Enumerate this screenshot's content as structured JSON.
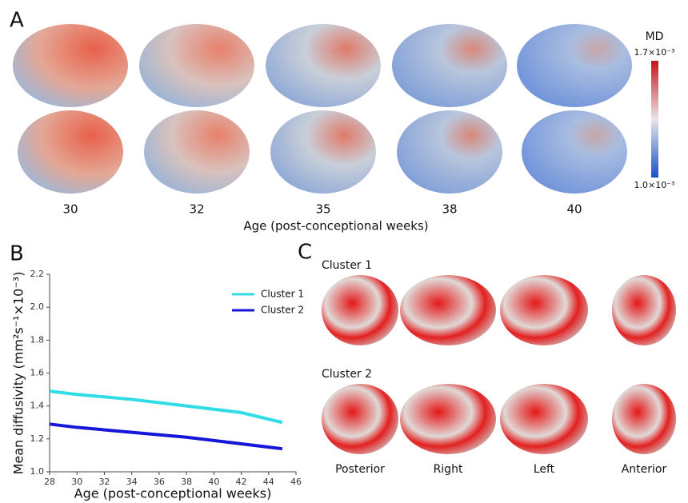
{
  "panel_labels": [
    "A",
    "B",
    "C"
  ],
  "panel_a": {
    "ages": [
      "30",
      "32",
      "35",
      "38",
      "40"
    ],
    "axis_label": "Age (post-conceptional weeks)",
    "colorbar": {
      "title": "MD",
      "max_label": "1.7×10⁻³",
      "min_label": "1.0×10⁻³"
    }
  },
  "chart_data": {
    "type": "line",
    "xlabel": "Age (post-conceptional weeks)",
    "ylabel": "Mean diffusivity (mm²s⁻¹×10⁻³)",
    "xlim": [
      28,
      46
    ],
    "xticks": [
      28,
      30,
      32,
      34,
      36,
      38,
      40,
      42,
      44,
      46
    ],
    "ylim": [
      1.0,
      2.2
    ],
    "yticks": [
      {
        "value": 1.0,
        "label": "1.0"
      },
      1.2,
      1.4,
      1.6,
      1.8,
      {
        "value": 2.0,
        "label": "2.0"
      },
      2.2
    ],
    "x": [
      28,
      30,
      34,
      38,
      42,
      44,
      45
    ],
    "series": [
      {
        "name": "Cluster 1",
        "color": "#30dde6",
        "values": [
          1.49,
          1.47,
          1.44,
          1.4,
          1.36,
          1.32,
          1.3
        ]
      },
      {
        "name": "Cluster 2",
        "color": "#1616d8",
        "values": [
          1.29,
          1.27,
          1.24,
          1.21,
          1.17,
          1.15,
          1.14
        ]
      }
    ],
    "legend": "upper right"
  },
  "panel_c": {
    "rows": [
      "Cluster 1",
      "Cluster 2"
    ],
    "views": [
      "Posterior",
      "Right",
      "Left",
      "Anterior"
    ]
  }
}
